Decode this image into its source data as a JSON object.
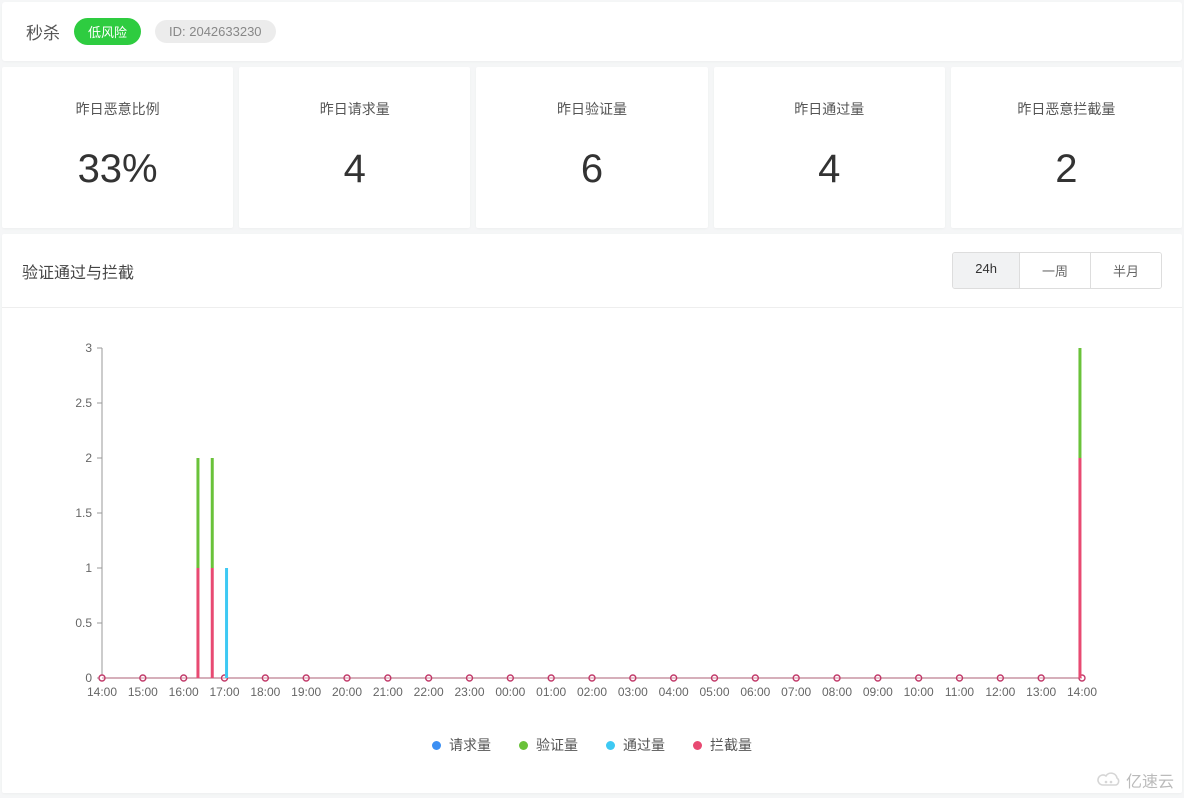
{
  "header": {
    "title": "秒杀",
    "risk_label": "低风险",
    "risk_color": "#2ecc40",
    "id_label": "ID: 2042633230"
  },
  "stats": [
    {
      "label": "昨日恶意比例",
      "value": "33%"
    },
    {
      "label": "昨日请求量",
      "value": "4"
    },
    {
      "label": "昨日验证量",
      "value": "6"
    },
    {
      "label": "昨日通过量",
      "value": "4"
    },
    {
      "label": "昨日恶意拦截量",
      "value": "2"
    }
  ],
  "chart": {
    "title": "验证通过与拦截",
    "range_options": [
      "24h",
      "一周",
      "半月"
    ],
    "range_active": "24h",
    "type": "line",
    "ylim": [
      0,
      3
    ],
    "ytick_step": 0.5,
    "x_labels": [
      "14:00",
      "15:00",
      "16:00",
      "17:00",
      "18:00",
      "19:00",
      "20:00",
      "21:00",
      "22:00",
      "23:00",
      "00:00",
      "01:00",
      "02:00",
      "03:00",
      "04:00",
      "05:00",
      "06:00",
      "07:00",
      "08:00",
      "09:00",
      "10:00",
      "11:00",
      "12:00",
      "13:00",
      "14:00"
    ],
    "axis_color": "#999",
    "grid_color": "#eee",
    "baseline_marker_color": "#c23a6a",
    "marker_line_color": "#ba3a60",
    "background_color": "#ffffff",
    "label_fontsize": 12,
    "legend": [
      {
        "name": "请求量",
        "color": "#3b8ff3"
      },
      {
        "name": "验证量",
        "color": "#6ac23a"
      },
      {
        "name": "通过量",
        "color": "#3ec9f3"
      },
      {
        "name": "拦截量",
        "color": "#e84a72"
      }
    ],
    "spikes": [
      {
        "x_index": 2.35,
        "segments": [
          {
            "from": 0,
            "to": 1,
            "color": "#e84a72"
          },
          {
            "from": 1,
            "to": 2,
            "color": "#6ac23a"
          }
        ]
      },
      {
        "x_index": 2.7,
        "segments": [
          {
            "from": 0,
            "to": 1,
            "color": "#e84a72"
          },
          {
            "from": 1,
            "to": 2,
            "color": "#6ac23a"
          }
        ]
      },
      {
        "x_index": 3.05,
        "segments": [
          {
            "from": 0,
            "to": 1,
            "color": "#3ec9f3"
          }
        ]
      },
      {
        "x_index": 23.95,
        "segments": [
          {
            "from": 0,
            "to": 2,
            "color": "#e84a72"
          },
          {
            "from": 2,
            "to": 3,
            "color": "#6ac23a"
          }
        ]
      }
    ]
  },
  "watermark": {
    "text": "亿速云"
  }
}
